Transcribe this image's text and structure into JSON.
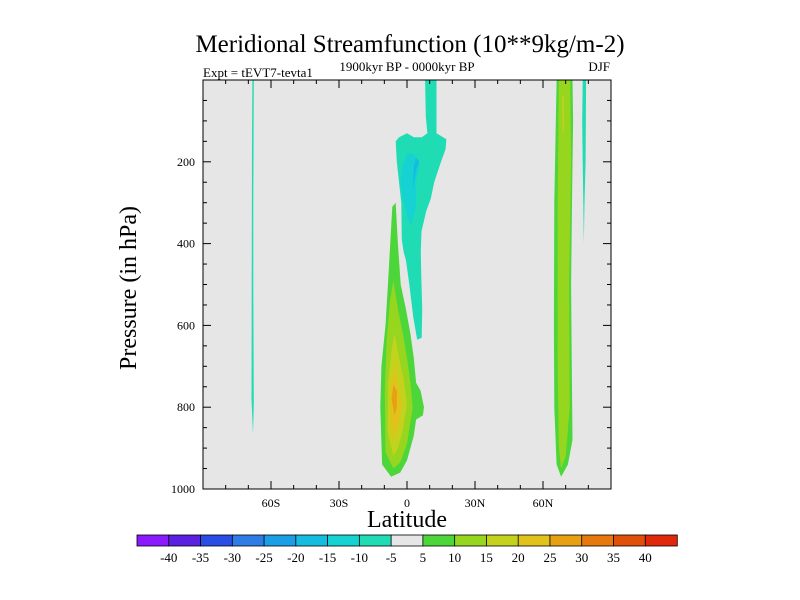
{
  "chart_data": {
    "type": "contour",
    "title": "Meridional Streamfunction (10**9kg/m-2)",
    "left_string": "Expt = tEVT7-tevta1",
    "center_string": "1900kyr BP - 0000kyr BP",
    "right_string": "DJF",
    "xlabel": "Latitude",
    "ylabel": "Pressure (in hPa)",
    "x_range": [
      -90,
      90
    ],
    "y_range": [
      0,
      1000
    ],
    "y_reversed": true,
    "x_ticks": [
      {
        "value": -60,
        "label": "60S"
      },
      {
        "value": -30,
        "label": "30S"
      },
      {
        "value": 0,
        "label": "0"
      },
      {
        "value": 30,
        "label": "30N"
      },
      {
        "value": 60,
        "label": "60N"
      }
    ],
    "y_ticks": [
      {
        "value": 200,
        "label": "200"
      },
      {
        "value": 400,
        "label": "400"
      },
      {
        "value": 600,
        "label": "600"
      },
      {
        "value": 800,
        "label": "800"
      },
      {
        "value": 1000,
        "label": "1000"
      }
    ],
    "background_color": "#e6e6e6",
    "contour_levels": [
      -40,
      -35,
      -30,
      -25,
      -20,
      -15,
      -10,
      -5,
      5,
      10,
      15,
      20,
      25,
      30,
      35,
      40
    ],
    "colorbar_labels": [
      "-40",
      "-35",
      "-30",
      "-25",
      "-20",
      "-15",
      "-10",
      "-5",
      "5",
      "10",
      "15",
      "20",
      "25",
      "30",
      "35",
      "40"
    ],
    "colors": [
      "#8c1aff",
      "#5a22e0",
      "#2a4de6",
      "#2e7de6",
      "#1a9fe6",
      "#14bde0",
      "#16d2d2",
      "#20dcb4",
      "#e6e6e6",
      "#4cd63a",
      "#96d61e",
      "#c4d21e",
      "#e0c21a",
      "#e6a012",
      "#e6780e",
      "#e05008",
      "#e0280a"
    ],
    "regions": [
      {
        "name": "sh-polar-neg-cell",
        "level": -5,
        "points": [
          [
            -68,
            860
          ],
          [
            -68.6,
            780
          ],
          [
            -68.5,
            500
          ],
          [
            -68.4,
            150
          ],
          [
            -68.2,
            0
          ],
          [
            -67.6,
            0
          ],
          [
            -67.8,
            300
          ],
          [
            -67.8,
            500
          ],
          [
            -67.6,
            790
          ],
          [
            -67.9,
            860
          ]
        ]
      },
      {
        "name": "upper-neg-cell",
        "level": -5,
        "points": [
          [
            -3.5,
            140
          ],
          [
            -5,
            150
          ],
          [
            -4.5,
            200
          ],
          [
            -2.5,
            300
          ],
          [
            -2.3,
            390
          ],
          [
            -1.5,
            420
          ],
          [
            -0.5,
            440
          ],
          [
            1,
            500
          ],
          [
            2.8,
            580
          ],
          [
            4.5,
            635
          ],
          [
            6.5,
            630
          ],
          [
            6.7,
            560
          ],
          [
            6.3,
            480
          ],
          [
            6.1,
            420
          ],
          [
            6.4,
            370
          ],
          [
            8.5,
            320
          ],
          [
            10.5,
            290
          ],
          [
            12,
            250
          ],
          [
            15,
            200
          ],
          [
            17,
            170
          ],
          [
            17.4,
            145
          ],
          [
            13,
            130
          ],
          [
            13,
            0
          ],
          [
            8,
            0
          ],
          [
            8.3,
            90
          ],
          [
            9,
            130
          ],
          [
            6.5,
            140
          ],
          [
            3,
            140
          ],
          [
            0,
            130
          ]
        ]
      },
      {
        "name": "upper-neg-cell",
        "level": -10,
        "points": [
          [
            -3,
            250
          ],
          [
            -1.5,
            300
          ],
          [
            0.5,
            340
          ],
          [
            2,
            355
          ],
          [
            4,
            310
          ],
          [
            4,
            250
          ],
          [
            5.5,
            205
          ],
          [
            3,
            180
          ],
          [
            0,
            180
          ],
          [
            -2,
            210
          ]
        ]
      },
      {
        "name": "upper-neg-cell",
        "level": -15,
        "points": [
          [
            2.5,
            270
          ],
          [
            4,
            220
          ],
          [
            5.5,
            200
          ],
          [
            4,
            190
          ],
          [
            3,
            210
          ]
        ]
      },
      {
        "name": "equatorial-pos-cell",
        "level": 5,
        "points": [
          [
            -7,
            970
          ],
          [
            -11,
            940
          ],
          [
            -11.8,
            800
          ],
          [
            -11.3,
            700
          ],
          [
            -9.5,
            600
          ],
          [
            -8.2,
            480
          ],
          [
            -6.5,
            310
          ],
          [
            -5,
            300
          ],
          [
            -4,
            400
          ],
          [
            -2.8,
            500
          ],
          [
            -0.5,
            560
          ],
          [
            1.5,
            620
          ],
          [
            3,
            680
          ],
          [
            4,
            740
          ],
          [
            6,
            760
          ],
          [
            7.5,
            800
          ],
          [
            7,
            820
          ],
          [
            4,
            830
          ],
          [
            3,
            870
          ],
          [
            0,
            930
          ],
          [
            -3,
            960
          ]
        ]
      },
      {
        "name": "equatorial-pos-cell",
        "level": 10,
        "points": [
          [
            -6,
            950
          ],
          [
            -9.5,
            910
          ],
          [
            -9.8,
            760
          ],
          [
            -9,
            640
          ],
          [
            -7.5,
            540
          ],
          [
            -6,
            490
          ],
          [
            -4,
            560
          ],
          [
            -1.8,
            620
          ],
          [
            0,
            680
          ],
          [
            1.5,
            740
          ],
          [
            2.5,
            800
          ],
          [
            0,
            890
          ],
          [
            -3,
            935
          ]
        ]
      },
      {
        "name": "equatorial-pos-cell",
        "level": 15,
        "points": [
          [
            -6,
            920
          ],
          [
            -8.5,
            860
          ],
          [
            -8.3,
            740
          ],
          [
            -6.8,
            660
          ],
          [
            -5.5,
            620
          ],
          [
            -3.5,
            680
          ],
          [
            -1.5,
            730
          ],
          [
            0,
            790
          ],
          [
            -2,
            860
          ],
          [
            -4,
            900
          ]
        ]
      },
      {
        "name": "equatorial-pos-cell",
        "level": 20,
        "points": [
          [
            -6,
            880
          ],
          [
            -7.5,
            830
          ],
          [
            -7,
            740
          ],
          [
            -5.5,
            700
          ],
          [
            -4,
            740
          ],
          [
            -2.5,
            790
          ],
          [
            -3.5,
            840
          ]
        ]
      },
      {
        "name": "equatorial-pos-cell",
        "level": 25,
        "points": [
          [
            -5.5,
            820
          ],
          [
            -6.8,
            780
          ],
          [
            -6,
            745
          ],
          [
            -4.5,
            760
          ],
          [
            -4.5,
            800
          ]
        ]
      },
      {
        "name": "nh-pos-cell",
        "level": 5,
        "points": [
          [
            68,
            970
          ],
          [
            66,
            940
          ],
          [
            65,
            800
          ],
          [
            64.8,
            600
          ],
          [
            65,
            300
          ],
          [
            66,
            0
          ],
          [
            73,
            0
          ],
          [
            73.3,
            100
          ],
          [
            72.8,
            300
          ],
          [
            72.4,
            500
          ],
          [
            72.7,
            700
          ],
          [
            73,
            880
          ],
          [
            71,
            940
          ]
        ]
      },
      {
        "name": "nh-pos-cell",
        "level": 10,
        "points": [
          [
            68,
            950
          ],
          [
            67,
            900
          ],
          [
            66.5,
            700
          ],
          [
            66.5,
            300
          ],
          [
            67,
            0
          ],
          [
            72,
            0
          ],
          [
            72.4,
            200
          ],
          [
            71.5,
            500
          ],
          [
            71.8,
            800
          ],
          [
            70,
            920
          ]
        ]
      },
      {
        "name": "nh-pos-cell",
        "level": 15,
        "points": [
          [
            68.5,
            40
          ],
          [
            69.2,
            40
          ],
          [
            69.3,
            120
          ],
          [
            68.7,
            130
          ]
        ]
      },
      {
        "name": "nh-polar-neg-cell",
        "level": -5,
        "points": [
          [
            77.5,
            0
          ],
          [
            79,
            0
          ],
          [
            78.8,
            200
          ],
          [
            78.3,
            300
          ],
          [
            78,
            400
          ],
          [
            77.8,
            300
          ],
          [
            77.5,
            200
          ],
          [
            77.3,
            100
          ]
        ]
      }
    ]
  }
}
